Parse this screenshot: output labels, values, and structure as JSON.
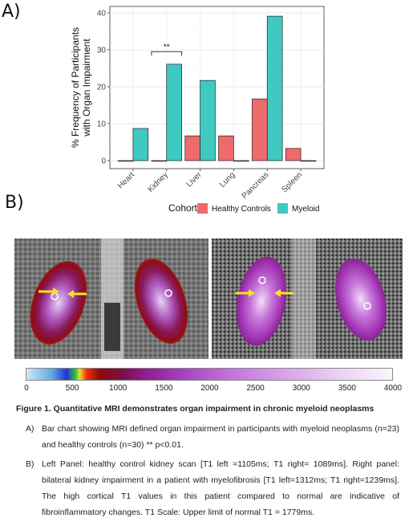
{
  "panel_a_label": "A)",
  "panel_b_label": "B)",
  "chart_data": {
    "type": "bar",
    "ylabel": "% Frequency of Participants with Organ Impairment",
    "ylabel_lines": [
      "% Frequency of Participants",
      "with Organ Impairment"
    ],
    "categories": [
      "Heart",
      "Kidney",
      "Liver",
      "Lung",
      "Pancreas",
      "Spleen"
    ],
    "ylim": [
      0,
      40
    ],
    "yticks": [
      0,
      10,
      20,
      30,
      40
    ],
    "grid": true,
    "legend_position": "bottom",
    "legend_title": "Cohort",
    "series": [
      {
        "name": "Healthy Controls",
        "color": "#ee6b6b",
        "values": [
          0,
          0,
          6.7,
          6.7,
          16.7,
          3.3
        ]
      },
      {
        "name": "Myeloid",
        "color": "#3fc9c0",
        "values": [
          8.7,
          26.1,
          21.7,
          0,
          39.1,
          0
        ]
      }
    ],
    "annotation": {
      "text": "**",
      "category": "Kidney"
    }
  },
  "colorscale": {
    "ticks": [
      "0",
      "500",
      "1000",
      "1500",
      "2000",
      "2500",
      "3000",
      "3500",
      "4000"
    ]
  },
  "caption": {
    "title": "Figure 1. Quantitative MRI demonstrates organ impairment in chronic myeloid neoplasms",
    "item_a_label": "A)",
    "item_a_text": "Bar chart showing MRI defined organ impairment in participants with myeloid neoplasms (n=23) and healthy controls (n=30) ** p<0.01.",
    "item_b_label": "B)",
    "item_b_text": "Left Panel: healthy control kidney scan [T1 left =1105ms; T1 right= 1089ms]. Right panel: bilateral kidney impairment in a patient with myelofibrosis [T1 left=1312ms; T1 right=1239ms]. The high cortical T1 values in this patient compared to normal are indicative of fibroinflammatory changes. T1 Scale: Upper limit of normal T1 = 1779ms."
  }
}
